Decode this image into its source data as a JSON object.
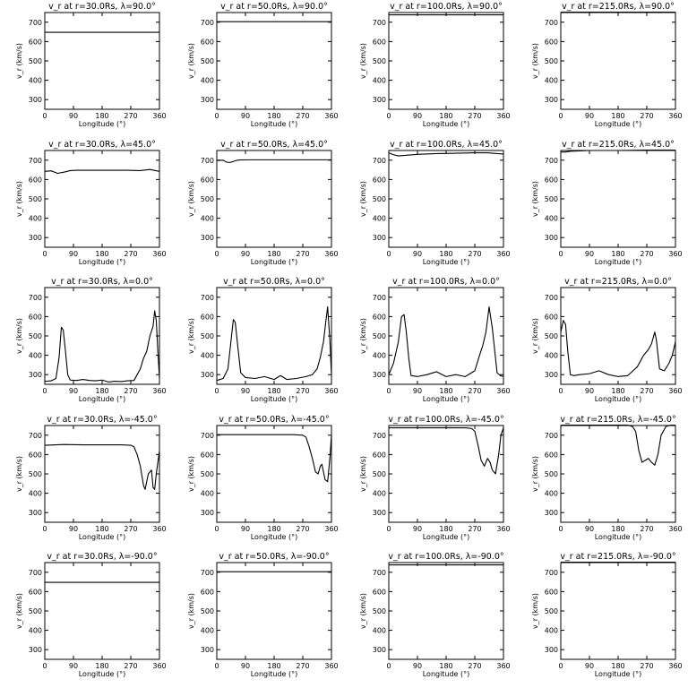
{
  "x_label": "Longitude (°)",
  "y_label": "v_r (km/s)",
  "x_ticks": [
    "0",
    "90",
    "180",
    "270",
    "360"
  ],
  "y_ticks": [
    "300",
    "400",
    "500",
    "600",
    "700"
  ],
  "chart_data": [
    {
      "type": "line",
      "title": "v_r at r=30.0Rs, λ=90.0°",
      "xlim": [
        0,
        360
      ],
      "ylim": [
        250,
        750
      ],
      "series": [
        {
          "x": [
            0,
            360
          ],
          "y": [
            648,
            648
          ]
        }
      ]
    },
    {
      "type": "line",
      "title": "v_r at r=50.0Rs, λ=90.0°",
      "xlim": [
        0,
        360
      ],
      "ylim": [
        250,
        750
      ],
      "series": [
        {
          "x": [
            0,
            360
          ],
          "y": [
            703,
            703
          ]
        }
      ]
    },
    {
      "type": "line",
      "title": "v_r at r=100.0Rs, λ=90.0°",
      "xlim": [
        0,
        360
      ],
      "ylim": [
        250,
        750
      ],
      "series": [
        {
          "x": [
            0,
            360
          ],
          "y": [
            738,
            738
          ]
        }
      ]
    },
    {
      "type": "line",
      "title": "v_r at r=215.0Rs, λ=90.0°",
      "xlim": [
        0,
        360
      ],
      "ylim": [
        250,
        750
      ],
      "series": [
        {
          "x": [
            0,
            360
          ],
          "y": [
            752,
            752
          ]
        }
      ]
    },
    {
      "type": "line",
      "title": "v_r at r=30.0Rs, λ=45.0°",
      "xlim": [
        0,
        360
      ],
      "ylim": [
        250,
        750
      ],
      "series": [
        {
          "x": [
            0,
            20,
            40,
            60,
            80,
            100,
            140,
            200,
            260,
            300,
            330,
            360
          ],
          "y": [
            642,
            645,
            632,
            638,
            646,
            648,
            648,
            648,
            648,
            646,
            652,
            642
          ]
        }
      ]
    },
    {
      "type": "line",
      "title": "v_r at r=50.0Rs, λ=45.0°",
      "xlim": [
        0,
        360
      ],
      "ylim": [
        250,
        750
      ],
      "series": [
        {
          "x": [
            0,
            20,
            30,
            40,
            50,
            60,
            70,
            100,
            200,
            300,
            360
          ],
          "y": [
            698,
            700,
            690,
            688,
            692,
            698,
            701,
            702,
            702,
            702,
            702
          ]
        }
      ]
    },
    {
      "type": "line",
      "title": "v_r at r=100.0Rs, λ=45.0°",
      "xlim": [
        0,
        360
      ],
      "ylim": [
        250,
        750
      ],
      "series": [
        {
          "x": [
            0,
            15,
            30,
            60,
            90,
            150,
            210,
            270,
            310,
            340,
            360
          ],
          "y": [
            738,
            728,
            722,
            726,
            730,
            734,
            736,
            738,
            738,
            734,
            732
          ]
        }
      ]
    },
    {
      "type": "line",
      "title": "v_r at r=215.0Rs, λ=45.0°",
      "xlim": [
        0,
        360
      ],
      "ylim": [
        250,
        750
      ],
      "series": [
        {
          "x": [
            0,
            15,
            30,
            60,
            90,
            180,
            270,
            360
          ],
          "y": [
            742,
            742,
            746,
            748,
            750,
            750,
            752,
            752
          ]
        }
      ]
    },
    {
      "type": "line",
      "title": "v_r at r=30.0Rs, λ=0.0°",
      "xlim": [
        0,
        360
      ],
      "ylim": [
        250,
        750
      ],
      "series": [
        {
          "x": [
            0,
            20,
            35,
            45,
            52,
            58,
            65,
            72,
            80,
            100,
            120,
            140,
            160,
            180,
            200,
            220,
            240,
            260,
            280,
            290,
            300,
            310,
            320,
            330,
            340,
            345,
            350,
            355,
            360
          ],
          "y": [
            265,
            268,
            280,
            390,
            545,
            530,
            420,
            300,
            272,
            270,
            275,
            270,
            268,
            272,
            262,
            266,
            264,
            268,
            270,
            300,
            330,
            385,
            420,
            500,
            550,
            630,
            580,
            420,
            280
          ]
        }
      ]
    },
    {
      "type": "line",
      "title": "v_r at r=50.0Rs, λ=0.0°",
      "xlim": [
        0,
        360
      ],
      "ylim": [
        250,
        750
      ],
      "series": [
        {
          "x": [
            0,
            20,
            35,
            45,
            52,
            58,
            65,
            75,
            90,
            120,
            150,
            180,
            200,
            220,
            250,
            280,
            300,
            315,
            325,
            335,
            342,
            348,
            355,
            360
          ],
          "y": [
            270,
            280,
            330,
            480,
            585,
            570,
            460,
            310,
            285,
            280,
            290,
            275,
            295,
            275,
            280,
            290,
            300,
            330,
            390,
            470,
            570,
            650,
            480,
            300
          ]
        }
      ]
    },
    {
      "type": "line",
      "title": "v_r at r=100.0Rs, λ=0.0°",
      "xlim": [
        0,
        360
      ],
      "ylim": [
        250,
        750
      ],
      "series": [
        {
          "x": [
            0,
            15,
            30,
            40,
            48,
            55,
            63,
            70,
            90,
            120,
            150,
            180,
            210,
            240,
            270,
            285,
            295,
            305,
            315,
            325,
            340,
            350,
            360
          ],
          "y": [
            300,
            360,
            470,
            600,
            610,
            520,
            380,
            295,
            290,
            300,
            315,
            290,
            300,
            290,
            320,
            400,
            450,
            520,
            650,
            540,
            310,
            295,
            290
          ]
        }
      ]
    },
    {
      "type": "line",
      "title": "v_r at r=215.0Rs, λ=0.0°",
      "xlim": [
        0,
        360
      ],
      "ylim": [
        250,
        750
      ],
      "series": [
        {
          "x": [
            0,
            8,
            15,
            22,
            30,
            40,
            60,
            90,
            120,
            150,
            180,
            210,
            240,
            260,
            275,
            285,
            295,
            300,
            310,
            325,
            340,
            350,
            360
          ],
          "y": [
            520,
            580,
            560,
            420,
            300,
            295,
            300,
            305,
            320,
            300,
            290,
            295,
            340,
            400,
            430,
            460,
            520,
            480,
            330,
            320,
            360,
            400,
            470
          ]
        }
      ]
    },
    {
      "type": "line",
      "title": "v_r at r=30.0Rs, λ=-45.0°",
      "xlim": [
        0,
        360
      ],
      "ylim": [
        250,
        750
      ],
      "series": [
        {
          "x": [
            0,
            60,
            120,
            180,
            240,
            270,
            280,
            290,
            300,
            310,
            315,
            325,
            335,
            340,
            345,
            350,
            355,
            360
          ],
          "y": [
            648,
            652,
            650,
            650,
            650,
            648,
            640,
            600,
            540,
            440,
            420,
            500,
            520,
            430,
            420,
            500,
            560,
            620
          ]
        }
      ]
    },
    {
      "type": "line",
      "title": "v_r at r=50.0Rs, λ=-45.0°",
      "xlim": [
        0,
        360
      ],
      "ylim": [
        250,
        750
      ],
      "series": [
        {
          "x": [
            0,
            60,
            120,
            180,
            240,
            270,
            280,
            290,
            300,
            310,
            318,
            325,
            330,
            340,
            348,
            355,
            360
          ],
          "y": [
            703,
            703,
            703,
            703,
            703,
            700,
            690,
            640,
            580,
            510,
            500,
            540,
            550,
            470,
            460,
            580,
            700
          ]
        }
      ]
    },
    {
      "type": "line",
      "title": "v_r at r=100.0Rs, λ=-45.0°",
      "xlim": [
        0,
        360
      ],
      "ylim": [
        250,
        750
      ],
      "series": [
        {
          "x": [
            0,
            60,
            120,
            180,
            240,
            260,
            270,
            280,
            290,
            300,
            310,
            318,
            325,
            335,
            345,
            352,
            360
          ],
          "y": [
            738,
            738,
            738,
            738,
            738,
            735,
            720,
            650,
            570,
            540,
            580,
            560,
            520,
            500,
            600,
            700,
            738
          ]
        }
      ]
    },
    {
      "type": "line",
      "title": "v_r at r=215.0Rs, λ=-45.0°",
      "xlim": [
        0,
        360
      ],
      "ylim": [
        250,
        750
      ],
      "series": [
        {
          "x": [
            0,
            60,
            120,
            180,
            210,
            225,
            235,
            245,
            255,
            265,
            275,
            285,
            295,
            305,
            315,
            330,
            345,
            360
          ],
          "y": [
            752,
            752,
            752,
            752,
            752,
            745,
            720,
            620,
            560,
            570,
            580,
            560,
            545,
            600,
            700,
            745,
            752,
            752
          ]
        }
      ]
    },
    {
      "type": "line",
      "title": "v_r at r=30.0Rs, λ=-90.0°",
      "xlim": [
        0,
        360
      ],
      "ylim": [
        250,
        750
      ],
      "series": [
        {
          "x": [
            0,
            360
          ],
          "y": [
            648,
            648
          ]
        }
      ]
    },
    {
      "type": "line",
      "title": "v_r at r=50.0Rs, λ=-90.0°",
      "xlim": [
        0,
        360
      ],
      "ylim": [
        250,
        750
      ],
      "series": [
        {
          "x": [
            0,
            360
          ],
          "y": [
            703,
            703
          ]
        }
      ]
    },
    {
      "type": "line",
      "title": "v_r at r=100.0Rs, λ=-90.0°",
      "xlim": [
        0,
        360
      ],
      "ylim": [
        250,
        750
      ],
      "series": [
        {
          "x": [
            0,
            360
          ],
          "y": [
            738,
            738
          ]
        }
      ]
    },
    {
      "type": "line",
      "title": "v_r at r=215.0Rs, λ=-90.0°",
      "xlim": [
        0,
        360
      ],
      "ylim": [
        250,
        750
      ],
      "series": [
        {
          "x": [
            0,
            360
          ],
          "y": [
            752,
            752
          ]
        }
      ]
    }
  ]
}
